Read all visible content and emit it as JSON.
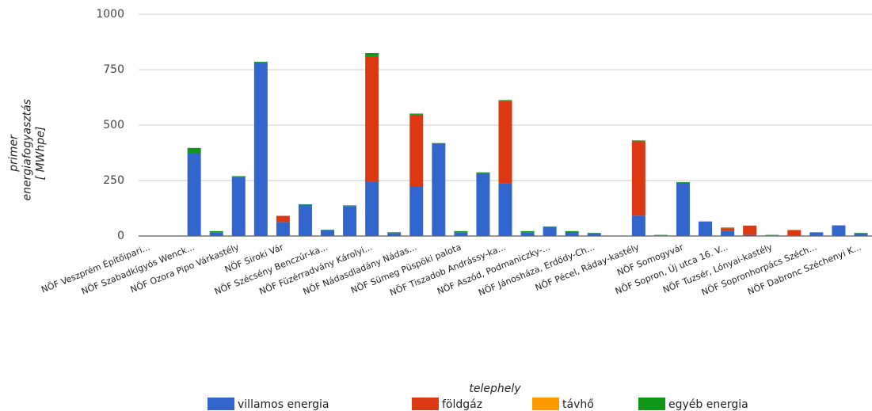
{
  "chart_data": {
    "type": "stacked_bar",
    "y_label": "primer energiafogyasztás [ MWhpe]",
    "x_label": "telephely",
    "categories": [
      "NÖF Veszprém Építőipari...",
      null,
      "NÖF Szabadkígyós Wenck...",
      null,
      "NÖF Ozora Pipo Várkastély",
      null,
      "NÖF Siroki Vár",
      null,
      "NÖF Szécsény Benczúr-ka...",
      null,
      "NÖF Füzérradvány Károlyi...",
      null,
      "NÖF Nádasdladány Nádas...",
      null,
      "NÖF Sümeg Püspöki palota",
      null,
      "NÖF Tiszadob Andrássy-ka...",
      null,
      "NÖF Aszód, Podmaniczky-...",
      null,
      "NÖF Jánosháza, Erdődy-Ch...",
      null,
      "NÖF Pécel, Ráday-kastély",
      null,
      "NÖF Somogyvár",
      null,
      "NÖF Sopron, Új utca 16. V...",
      null,
      "NÖF Tuzsér, Lónyai-kastély",
      null,
      "NÖF Sopronhorpács Széch...",
      null,
      "NÖF Dabronc Széchenyi K..."
    ],
    "series": [
      {
        "name": "villamos energia",
        "color": "#3366cc",
        "values": [
          0,
          0,
          375,
          17,
          267,
          783,
          63,
          141,
          27,
          135,
          243,
          13,
          225,
          418,
          17,
          283,
          238,
          17,
          42,
          16,
          12,
          0,
          92,
          3,
          240,
          65,
          22,
          5,
          3,
          2,
          15,
          48,
          12
        ]
      },
      {
        "name": "földgáz",
        "color": "#dc3912",
        "values": [
          0,
          0,
          0,
          0,
          0,
          0,
          28,
          0,
          0,
          0,
          568,
          0,
          322,
          0,
          0,
          0,
          372,
          0,
          0,
          0,
          0,
          0,
          335,
          0,
          0,
          0,
          13,
          42,
          0,
          25,
          0,
          0,
          0
        ]
      },
      {
        "name": "távhő",
        "color": "#ff9900",
        "values": [
          0,
          0,
          0,
          0,
          0,
          0,
          0,
          0,
          0,
          0,
          0,
          0,
          0,
          0,
          0,
          0,
          0,
          0,
          0,
          0,
          0,
          0,
          0,
          0,
          0,
          0,
          0,
          0,
          0,
          0,
          0,
          0,
          0
        ]
      },
      {
        "name": "egyéb energia",
        "color": "#109618",
        "values": [
          0,
          0,
          22,
          5,
          3,
          3,
          0,
          2,
          1,
          3,
          14,
          4,
          5,
          1,
          5,
          4,
          3,
          5,
          1,
          6,
          2,
          0,
          4,
          2,
          3,
          1,
          3,
          0,
          2,
          0,
          2,
          0,
          2
        ]
      }
    ],
    "ylim": [
      0,
      1000
    ],
    "yticks": [
      0,
      250,
      500,
      750,
      1000
    ],
    "grid": true
  }
}
